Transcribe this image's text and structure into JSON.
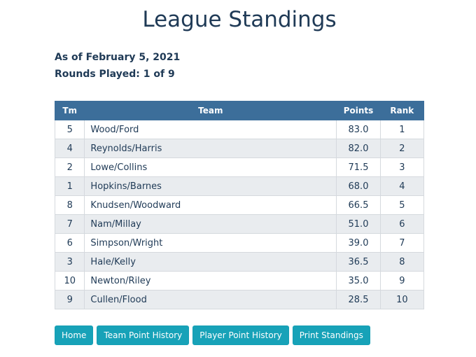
{
  "page": {
    "title": "League Standings",
    "as_of": "As of February 5, 2021",
    "rounds": "Rounds Played: 1 of 9"
  },
  "table": {
    "headers": {
      "tm": "Tm",
      "team": "Team",
      "points": "Points",
      "rank": "Rank"
    },
    "rows": [
      {
        "tm": "5",
        "team": "Wood/Ford",
        "points": "83.0",
        "rank": "1"
      },
      {
        "tm": "4",
        "team": "Reynolds/Harris",
        "points": "82.0",
        "rank": "2"
      },
      {
        "tm": "2",
        "team": "Lowe/Collins",
        "points": "71.5",
        "rank": "3"
      },
      {
        "tm": "1",
        "team": "Hopkins/Barnes",
        "points": "68.0",
        "rank": "4"
      },
      {
        "tm": "8",
        "team": "Knudsen/Woodward",
        "points": "66.5",
        "rank": "5"
      },
      {
        "tm": "7",
        "team": "Nam/Millay",
        "points": "51.0",
        "rank": "6"
      },
      {
        "tm": "6",
        "team": "Simpson/Wright",
        "points": "39.0",
        "rank": "7"
      },
      {
        "tm": "3",
        "team": "Hale/Kelly",
        "points": "36.5",
        "rank": "8"
      },
      {
        "tm": "10",
        "team": "Newton/Riley",
        "points": "35.0",
        "rank": "9"
      },
      {
        "tm": "9",
        "team": "Cullen/Flood",
        "points": "28.5",
        "rank": "10"
      }
    ]
  },
  "buttons": {
    "home": "Home",
    "team_point_history": "Team Point History",
    "player_point_history": "Player Point History",
    "print_standings": "Print Standings"
  },
  "colors": {
    "header_bg": "#3c6e9a",
    "button_bg": "#17a2b8",
    "row_alt_bg": "#e9ecef",
    "text": "#1f3a56"
  }
}
